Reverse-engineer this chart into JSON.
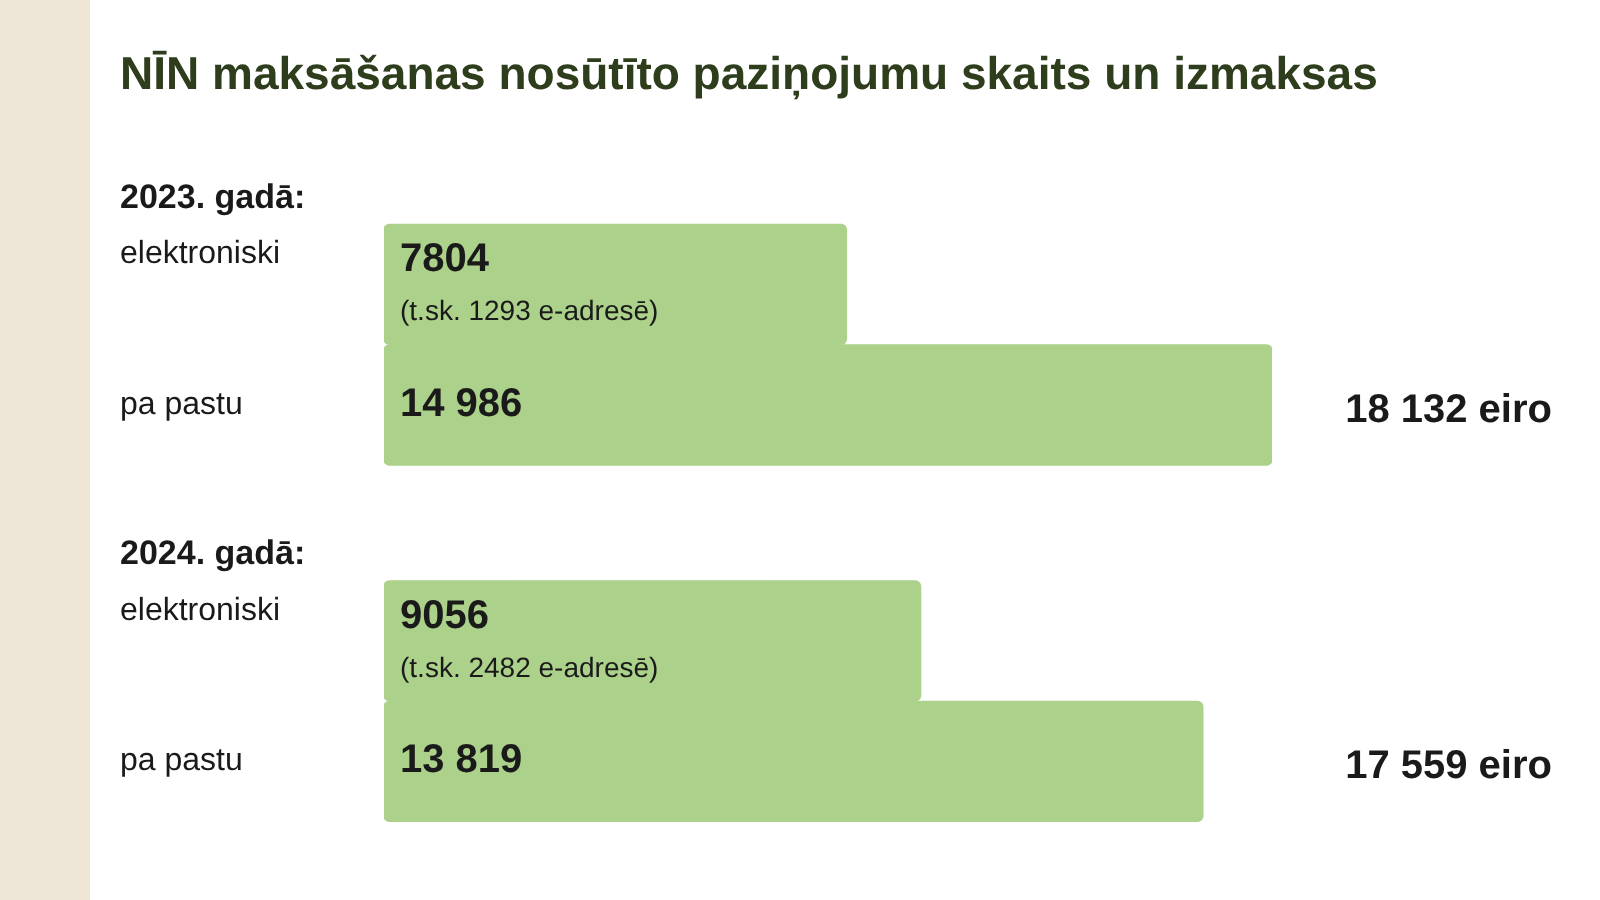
{
  "chart_data": {
    "type": "bar",
    "orientation": "horizontal",
    "title": "NĪN maksāšanas nosūtīto paziņojumu skaits un izmaksas",
    "categories": [
      "elektroniski",
      "pa pastu",
      "elektroniski",
      "pa pastu"
    ],
    "values": [
      7804,
      14986,
      9056,
      13819
    ],
    "value_labels": [
      "7804",
      "14 986",
      "9056",
      "13 819"
    ],
    "color": "#acd18a",
    "tick_labels": "y",
    "annotations": [
      "2023. gadā:",
      "(t.sk. 1293 e-adresē)",
      "18 132 eiro",
      "2024. gadā:",
      "(t.sk. 2482 e-adresē)",
      "17 559 eiro"
    ]
  }
}
